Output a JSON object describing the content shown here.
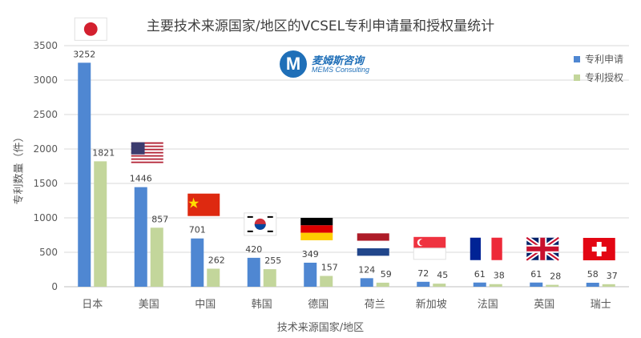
{
  "title": "主要技术来源国家/地区的VCSEL专利申请量和授权量统计",
  "logo": {
    "mark": "M",
    "name_cn": "麦姆斯咨询",
    "name_en": "MEMS Consulting"
  },
  "colors": {
    "applications": "#4f87d2",
    "grants": "#c3d69b",
    "grid": "#d9d9d9",
    "axis": "#bfbfbf"
  },
  "chart_data": {
    "type": "bar",
    "title": "主要技术来源国家/地区的VCSEL专利申请量和授权量统计",
    "xlabel": "技术来源国家/地区",
    "ylabel": "专利数量（件）",
    "ylim": [
      0,
      3500
    ],
    "yticks": [
      0,
      500,
      1000,
      1500,
      2000,
      2500,
      3000,
      3500
    ],
    "grid": true,
    "legend": "top-right",
    "categories": [
      "日本",
      "美国",
      "中国",
      "韩国",
      "德国",
      "荷兰",
      "新加坡",
      "法国",
      "英国",
      "瑞士"
    ],
    "flags": [
      "japan-flag",
      "usa-flag",
      "china-flag",
      "korea-flag",
      "germany-flag",
      "netherlands-flag",
      "singapore-flag",
      "france-flag",
      "uk-flag",
      "switzerland-flag"
    ],
    "series": [
      {
        "name": "专利申请",
        "values": [
          3252,
          1446,
          701,
          420,
          349,
          124,
          72,
          61,
          61,
          58
        ]
      },
      {
        "name": "专利授权",
        "values": [
          1821,
          857,
          262,
          255,
          157,
          59,
          45,
          38,
          28,
          37
        ]
      }
    ]
  }
}
